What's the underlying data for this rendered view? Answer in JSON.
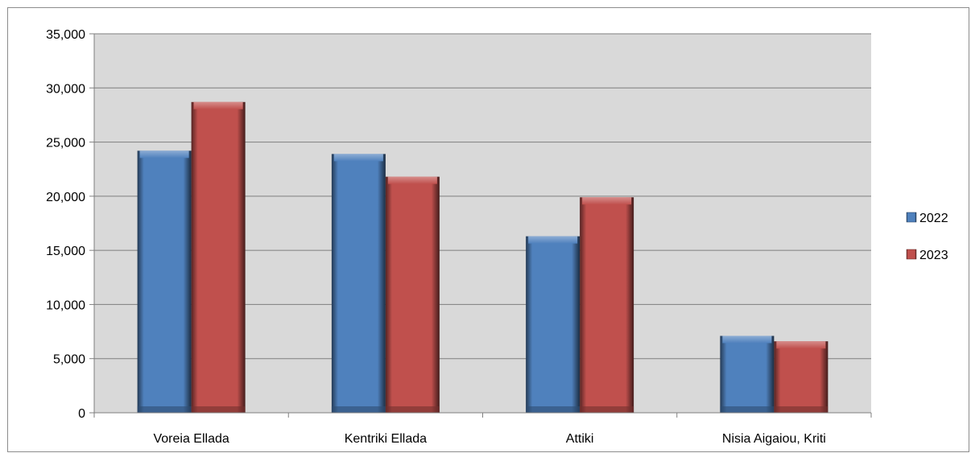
{
  "chart_data": {
    "type": "bar",
    "categories": [
      "Voreia Ellada",
      "Kentriki Ellada",
      "Attiki",
      "Nisia Aigaiou, Kriti"
    ],
    "series": [
      {
        "name": "2022",
        "values": [
          24200,
          23900,
          16300,
          7100
        ],
        "color": "#4f81bd"
      },
      {
        "name": "2023",
        "values": [
          28700,
          21800,
          19900,
          6600
        ],
        "color": "#c0504d"
      }
    ],
    "ylim": [
      0,
      35000
    ],
    "yticks": [
      0,
      5000,
      10000,
      15000,
      20000,
      25000,
      30000,
      35000
    ],
    "ytick_labels": [
      "0",
      "5,000",
      "10,000",
      "15,000",
      "20,000",
      "25,000",
      "30,000",
      "35,000"
    ],
    "grid": true,
    "legend_position": "right",
    "plot_background": "#d9d9d9",
    "gridline_color": "#7f7f7f"
  }
}
